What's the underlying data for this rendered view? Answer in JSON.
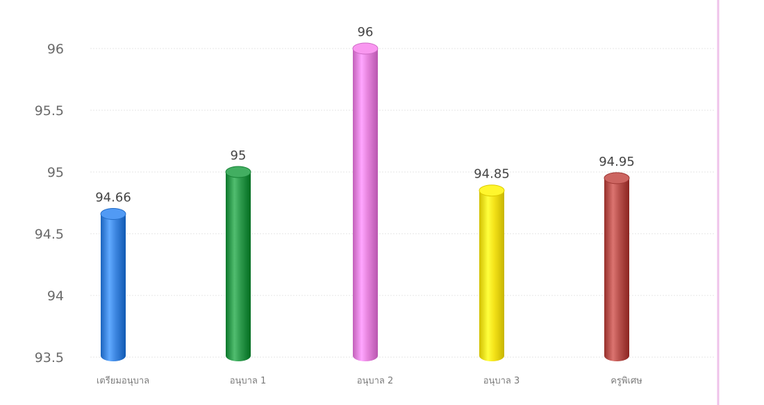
{
  "chart_data": {
    "type": "bar",
    "title": "",
    "xlabel": "",
    "ylabel": "",
    "categories": [
      "เตรียมอนุบาล",
      "อนุบาล 1",
      "อนุบาล 2",
      "อนุบาล 3",
      "ครูพิเศษ"
    ],
    "values": [
      94.66,
      95,
      96,
      94.85,
      94.95
    ],
    "data_labels": [
      "94.66",
      "95",
      "96",
      "94.85",
      "94.95"
    ],
    "bar_colors": [
      "#3d86e0",
      "#2e9a4d",
      "#e583dc",
      "#f4e219",
      "#b8514d"
    ],
    "ylim": [
      93.5,
      96
    ],
    "yticks": [
      93.5,
      94,
      94.5,
      95,
      95.5,
      96
    ],
    "ytick_labels": [
      "93.5",
      "94",
      "94.5",
      "95",
      "95.5",
      "96"
    ],
    "grid": true,
    "legend": false,
    "style": "3d-cylinder"
  }
}
